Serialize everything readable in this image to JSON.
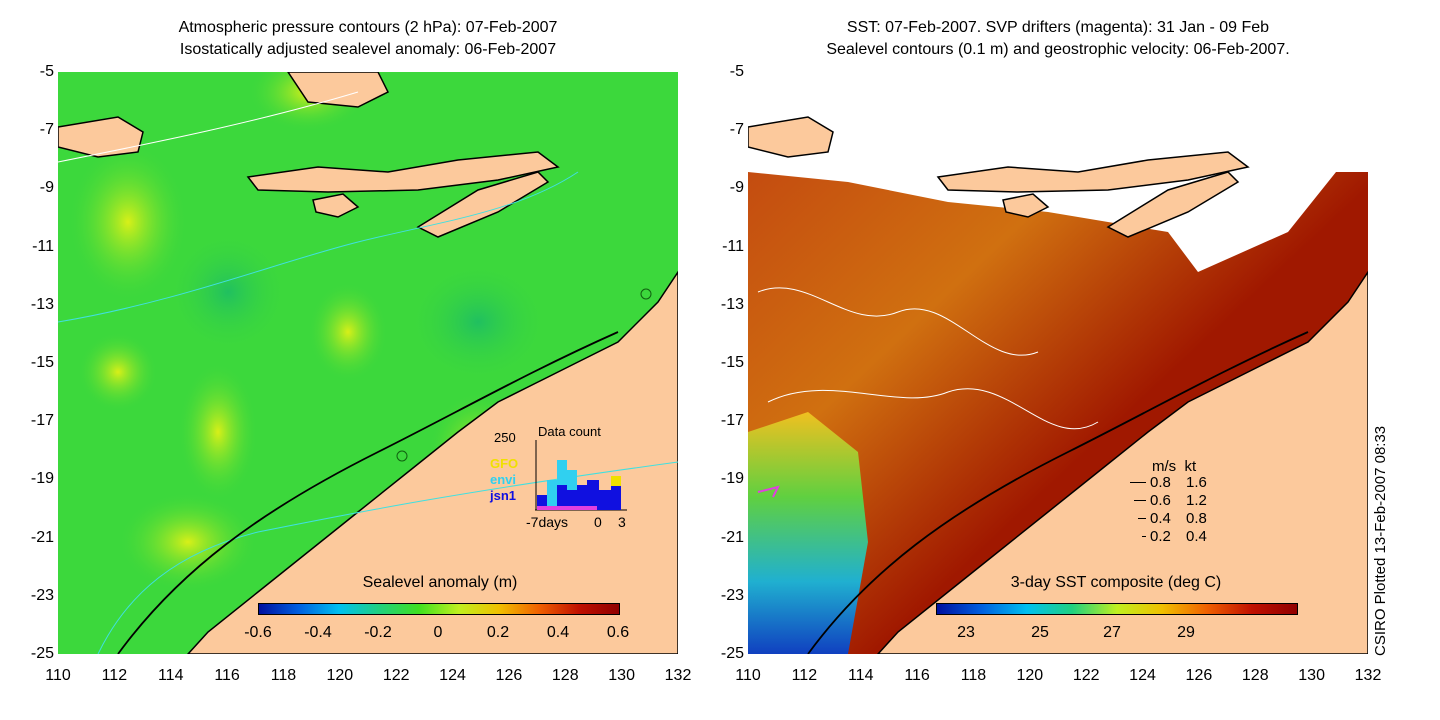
{
  "left_panel": {
    "title_line1": "Atmospheric pressure contours (2 hPa): 07-Feb-2007",
    "title_line2": "Isostatically adjusted sealevel anomaly: 06-Feb-2007",
    "colorbar_title": "Sealevel anomaly (m)",
    "colorbar_ticks": [
      "-0.6",
      "-0.4",
      "-0.2",
      "0",
      "0.2",
      "0.4",
      "0.6"
    ],
    "inset": {
      "title": "Data count",
      "y_max": "250",
      "x_left": "-7days",
      "x_mid": "0",
      "x_right": "3",
      "legend": [
        {
          "label": "GFO",
          "color": "#f0e000"
        },
        {
          "label": "envi",
          "color": "#30d0f0"
        },
        {
          "label": "jsn1",
          "color": "#1010e0"
        }
      ]
    }
  },
  "right_panel": {
    "title_line1": "SST: 07-Feb-2007. SVP drifters (magenta): 31 Jan - 09 Feb",
    "title_line2": "Sealevel contours (0.1 m) and geostrophic velocity: 06-Feb-2007.",
    "colorbar_title": "3-day SST composite (deg C)",
    "colorbar_ticks": [
      "23",
      "25",
      "27",
      "29"
    ],
    "velocity_legend": {
      "header_ms": "m/s",
      "header_kt": "kt",
      "rows": [
        {
          "ms": "0.8",
          "kt": "1.6"
        },
        {
          "ms": "0.6",
          "kt": "1.2"
        },
        {
          "ms": "0.4",
          "kt": "0.8"
        },
        {
          "ms": "0.2",
          "kt": "0.4"
        }
      ]
    }
  },
  "axes": {
    "lat_ticks": [
      "-5",
      "-7",
      "-9",
      "-11",
      "-13",
      "-15",
      "-17",
      "-19",
      "-21",
      "-23",
      "-25"
    ],
    "lon_ticks": [
      "110",
      "112",
      "114",
      "116",
      "118",
      "120",
      "122",
      "124",
      "126",
      "128",
      "130",
      "132"
    ]
  },
  "credit": "CSIRO Plotted 13-Feb-2007 08:33",
  "colors": {
    "land": "#fcc99c",
    "ocean_green": "#3cd83c",
    "ocean_yellow": "#c8f020",
    "sst_red": "#a01800",
    "sst_orange": "#d06010"
  }
}
